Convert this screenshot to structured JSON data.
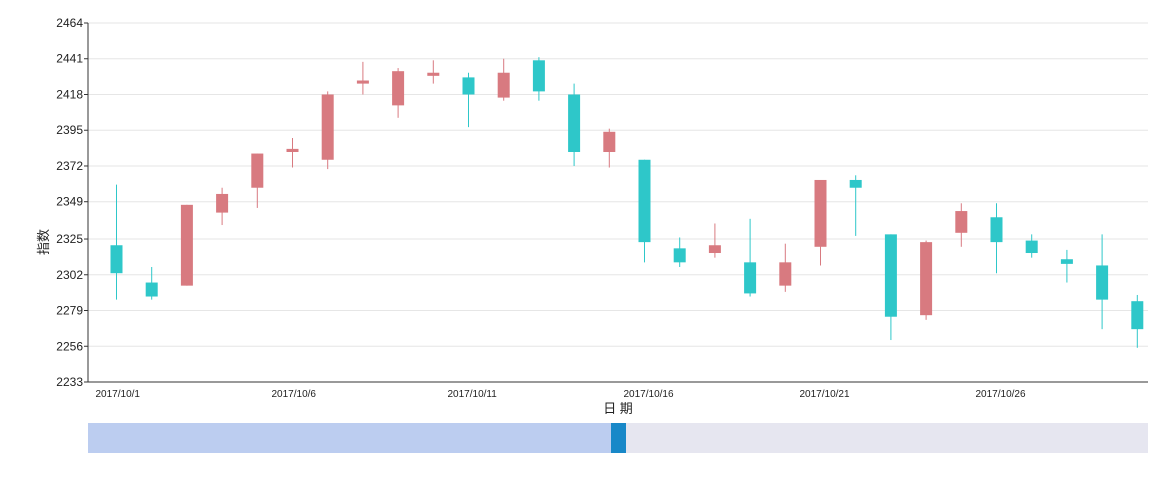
{
  "chart_data": {
    "type": "candlestick",
    "title": "",
    "xlabel": "日 期",
    "ylabel": "指数",
    "ylim": [
      2233,
      2464
    ],
    "yticks": [
      2233,
      2256,
      2279,
      2302,
      2325,
      2349,
      2372,
      2395,
      2418,
      2441,
      2464
    ],
    "xtick_labels": [
      {
        "index": 0,
        "label": "2017/10/1"
      },
      {
        "index": 5,
        "label": "2017/10/6"
      },
      {
        "index": 10,
        "label": "2017/10/11"
      },
      {
        "index": 15,
        "label": "2017/10/16"
      },
      {
        "index": 20,
        "label": "2017/10/21"
      },
      {
        "index": 25,
        "label": "2017/10/26"
      }
    ],
    "grid": true,
    "colors": {
      "up": "#d87a80",
      "down": "#2ec7c9"
    },
    "series": [
      {
        "date": "2017/10/1",
        "open": 2321,
        "close": 2303,
        "low": 2286,
        "high": 2360
      },
      {
        "date": "2017/10/2",
        "open": 2297,
        "close": 2288,
        "low": 2286,
        "high": 2307
      },
      {
        "date": "2017/10/3",
        "open": 2295,
        "close": 2347,
        "low": 2295,
        "high": 2347
      },
      {
        "date": "2017/10/4",
        "open": 2342,
        "close": 2354,
        "low": 2334,
        "high": 2358
      },
      {
        "date": "2017/10/5",
        "open": 2358,
        "close": 2380,
        "low": 2345,
        "high": 2380
      },
      {
        "date": "2017/10/6",
        "open": 2381,
        "close": 2383,
        "low": 2371,
        "high": 2390
      },
      {
        "date": "2017/10/7",
        "open": 2376,
        "close": 2418,
        "low": 2370,
        "high": 2420
      },
      {
        "date": "2017/10/8",
        "open": 2425,
        "close": 2427,
        "low": 2418,
        "high": 2439
      },
      {
        "date": "2017/10/9",
        "open": 2411,
        "close": 2433,
        "low": 2403,
        "high": 2435
      },
      {
        "date": "2017/10/10",
        "open": 2430,
        "close": 2432,
        "low": 2425,
        "high": 2440
      },
      {
        "date": "2017/10/11",
        "open": 2429,
        "close": 2418,
        "low": 2397,
        "high": 2432
      },
      {
        "date": "2017/10/12",
        "open": 2416,
        "close": 2432,
        "low": 2414,
        "high": 2441
      },
      {
        "date": "2017/10/13",
        "open": 2440,
        "close": 2420,
        "low": 2414,
        "high": 2442
      },
      {
        "date": "2017/10/14",
        "open": 2418,
        "close": 2381,
        "low": 2372,
        "high": 2425
      },
      {
        "date": "2017/10/15",
        "open": 2381,
        "close": 2394,
        "low": 2371,
        "high": 2396
      },
      {
        "date": "2017/10/16",
        "open": 2376,
        "close": 2323,
        "low": 2310,
        "high": 2376
      },
      {
        "date": "2017/10/17",
        "open": 2319,
        "close": 2310,
        "low": 2307,
        "high": 2326
      },
      {
        "date": "2017/10/18",
        "open": 2316,
        "close": 2321,
        "low": 2313,
        "high": 2335
      },
      {
        "date": "2017/10/19",
        "open": 2310,
        "close": 2290,
        "low": 2288,
        "high": 2338
      },
      {
        "date": "2017/10/20",
        "open": 2295,
        "close": 2310,
        "low": 2291,
        "high": 2322
      },
      {
        "date": "2017/10/21",
        "open": 2320,
        "close": 2363,
        "low": 2308,
        "high": 2363
      },
      {
        "date": "2017/10/22",
        "open": 2363,
        "close": 2358,
        "low": 2327,
        "high": 2366
      },
      {
        "date": "2017/10/23",
        "open": 2328,
        "close": 2275,
        "low": 2260,
        "high": 2328
      },
      {
        "date": "2017/10/24",
        "open": 2276,
        "close": 2323,
        "low": 2273,
        "high": 2324
      },
      {
        "date": "2017/10/25",
        "open": 2329,
        "close": 2343,
        "low": 2320,
        "high": 2348
      },
      {
        "date": "2017/10/26",
        "open": 2339,
        "close": 2323,
        "low": 2303,
        "high": 2348
      },
      {
        "date": "2017/10/27",
        "open": 2324,
        "close": 2316,
        "low": 2313,
        "high": 2328
      },
      {
        "date": "2017/10/28",
        "open": 2312,
        "close": 2309,
        "low": 2297,
        "high": 2318
      },
      {
        "date": "2017/10/29",
        "open": 2308,
        "close": 2286,
        "low": 2267,
        "high": 2328
      },
      {
        "date": "2017/10/30",
        "open": 2285,
        "close": 2267,
        "low": 2255,
        "high": 2289
      }
    ],
    "data_zoom": {
      "start_percent": 0,
      "end_percent": 50
    }
  }
}
